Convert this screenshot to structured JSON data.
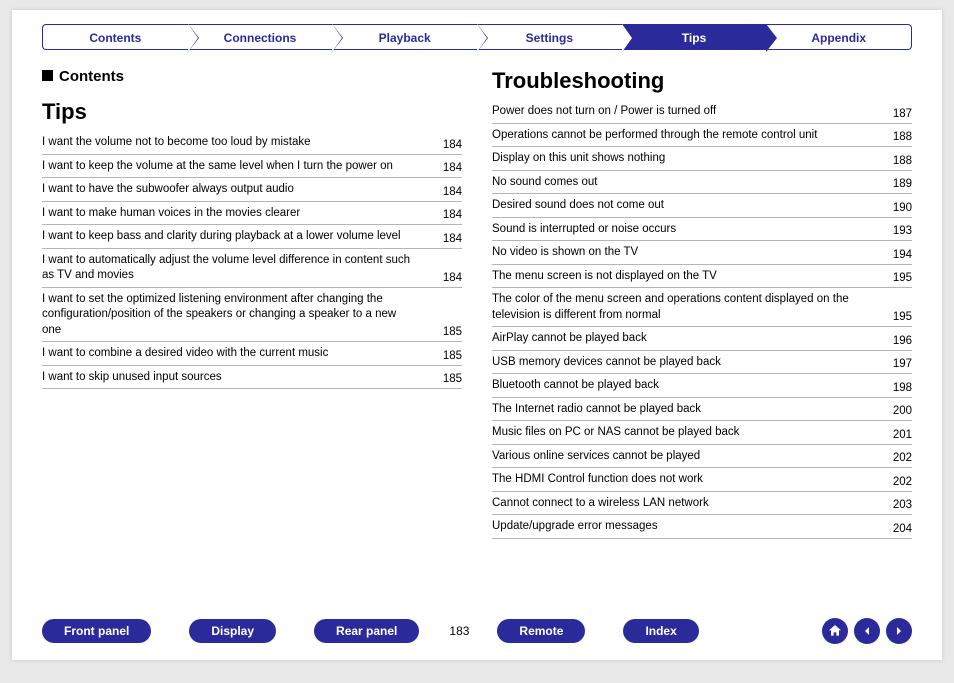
{
  "colors": {
    "brand": "#2a2a9a",
    "text": "#000000",
    "divider": "#b5b5b5",
    "page_bg": "#ffffff",
    "body_bg": "#e8e8e8"
  },
  "tabs": [
    {
      "label": "Contents",
      "active": false
    },
    {
      "label": "Connections",
      "active": false
    },
    {
      "label": "Playback",
      "active": false
    },
    {
      "label": "Settings",
      "active": false
    },
    {
      "label": "Tips",
      "active": true
    },
    {
      "label": "Appendix",
      "active": false
    }
  ],
  "left": {
    "marker": "Contents",
    "heading": "Tips",
    "items": [
      {
        "label": "I want the volume not to become too loud by mistake",
        "page": "184"
      },
      {
        "label": "I want to keep the volume at the same level when I turn the power on",
        "page": "184"
      },
      {
        "label": "I want to have the subwoofer always output audio",
        "page": "184"
      },
      {
        "label": "I want to make human voices in the movies clearer",
        "page": "184"
      },
      {
        "label": "I want to keep bass and clarity during playback at a lower volume level",
        "page": "184"
      },
      {
        "label": "I want to automatically adjust the volume level difference in content such as TV and movies",
        "page": "184"
      },
      {
        "label": "I want to set the optimized listening environment after changing the configuration/position of the speakers or changing a speaker to a new one",
        "page": "185"
      },
      {
        "label": "I want to combine a desired video with the current music",
        "page": "185"
      },
      {
        "label": "I want to skip unused input sources",
        "page": "185"
      }
    ]
  },
  "right": {
    "heading": "Troubleshooting",
    "items": [
      {
        "label": "Power does not turn on / Power is turned off",
        "page": "187"
      },
      {
        "label": "Operations cannot be performed through the remote control unit",
        "page": "188"
      },
      {
        "label": "Display on this unit shows nothing",
        "page": "188"
      },
      {
        "label": "No sound comes out",
        "page": "189"
      },
      {
        "label": "Desired sound does not come out",
        "page": "190"
      },
      {
        "label": "Sound is interrupted or noise occurs",
        "page": "193"
      },
      {
        "label": "No video is shown on the TV",
        "page": "194"
      },
      {
        "label": "The menu screen is not displayed on the TV",
        "page": "195"
      },
      {
        "label": "The color of the menu screen and operations content displayed on the television is different from normal",
        "page": "195"
      },
      {
        "label": "AirPlay cannot be played back",
        "page": "196"
      },
      {
        "label": "USB memory devices cannot be played back",
        "page": "197"
      },
      {
        "label": "Bluetooth cannot be played back",
        "page": "198"
      },
      {
        "label": "The Internet radio cannot be played back",
        "page": "200"
      },
      {
        "label": "Music files on PC or NAS cannot be played back",
        "page": "201"
      },
      {
        "label": "Various online services cannot be played",
        "page": "202"
      },
      {
        "label": "The HDMI Control function does not work",
        "page": "202"
      },
      {
        "label": "Cannot connect to a wireless LAN network",
        "page": "203"
      },
      {
        "label": "Update/upgrade error messages",
        "page": "204"
      }
    ]
  },
  "footer": {
    "buttons": [
      "Front panel",
      "Display",
      "Rear panel"
    ],
    "page_number": "183",
    "buttons2": [
      "Remote",
      "Index"
    ]
  }
}
